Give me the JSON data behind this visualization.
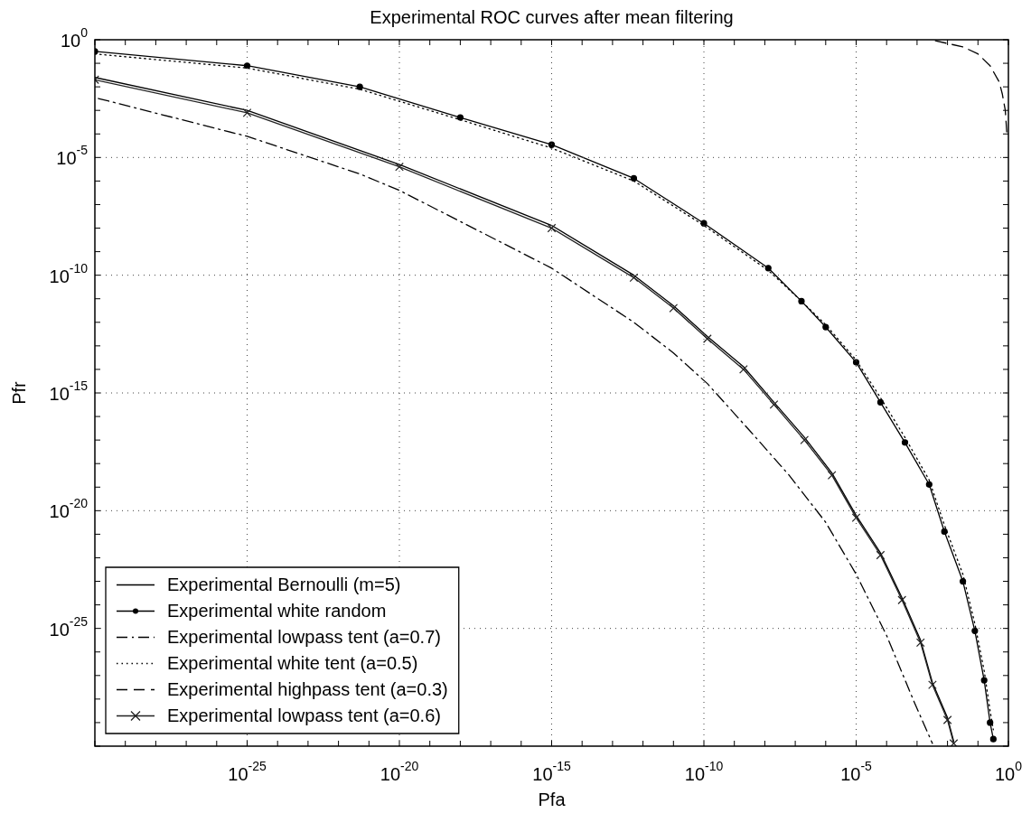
{
  "chart_data": {
    "type": "line",
    "title": "Experimental ROC curves after mean filtering",
    "xlabel": "Pfa",
    "ylabel": "Pfr",
    "log": "xy",
    "grid": true,
    "legend": "bottom left",
    "xlim": [
      1e-30,
      1
    ],
    "ylim": [
      1e-30,
      1
    ],
    "xticks": [
      {
        "value": 1e-30,
        "label": null
      },
      {
        "value": 1e-29,
        "label": null
      },
      {
        "value": 1e-28,
        "label": null
      },
      {
        "value": 1e-27,
        "label": null
      },
      {
        "value": 1e-26,
        "label": null
      },
      {
        "value": 1e-25,
        "label": "10$^{-25}$"
      },
      {
        "value": 1e-24,
        "label": null
      },
      {
        "value": 1e-23,
        "label": null
      },
      {
        "value": 1e-22,
        "label": null
      },
      {
        "value": 1e-21,
        "label": null
      },
      {
        "value": 1e-20,
        "label": "10$^{-20}$"
      },
      {
        "value": 1e-19,
        "label": null
      },
      {
        "value": 1e-18,
        "label": null
      },
      {
        "value": 1e-17,
        "label": null
      },
      {
        "value": 1e-16,
        "label": null
      },
      {
        "value": 1e-15,
        "label": "10$^{-15}$"
      },
      {
        "value": 1e-14,
        "label": null
      },
      {
        "value": 1e-13,
        "label": null
      },
      {
        "value": 1e-12,
        "label": null
      },
      {
        "value": 1e-11,
        "label": null
      },
      {
        "value": 1e-10,
        "label": "10$^{-10}$"
      },
      {
        "value": 1e-09,
        "label": null
      },
      {
        "value": 1e-08,
        "label": null
      },
      {
        "value": 1e-07,
        "label": null
      },
      {
        "value": 1e-06,
        "label": null
      },
      {
        "value": 1e-05,
        "label": "10$^{-5}$"
      },
      {
        "value": 0.0001,
        "label": null
      },
      {
        "value": 0.001,
        "label": null
      },
      {
        "value": 0.01,
        "label": null
      },
      {
        "value": 0.1,
        "label": null
      },
      {
        "value": 1,
        "label": "10$^{0}$"
      }
    ],
    "yticks": [
      {
        "value": 1e-30,
        "label": null
      },
      {
        "value": 1e-29,
        "label": null
      },
      {
        "value": 1e-28,
        "label": null
      },
      {
        "value": 1e-27,
        "label": null
      },
      {
        "value": 1e-26,
        "label": null
      },
      {
        "value": 1e-25,
        "label": "10$^{-25}$"
      },
      {
        "value": 1e-24,
        "label": null
      },
      {
        "value": 1e-23,
        "label": null
      },
      {
        "value": 1e-22,
        "label": null
      },
      {
        "value": 1e-21,
        "label": null
      },
      {
        "value": 1e-20,
        "label": "10$^{-20}$"
      },
      {
        "value": 1e-19,
        "label": null
      },
      {
        "value": 1e-18,
        "label": null
      },
      {
        "value": 1e-17,
        "label": null
      },
      {
        "value": 1e-16,
        "label": null
      },
      {
        "value": 1e-15,
        "label": "10$^{-15}$"
      },
      {
        "value": 1e-14,
        "label": null
      },
      {
        "value": 1e-13,
        "label": null
      },
      {
        "value": 1e-12,
        "label": null
      },
      {
        "value": 1e-11,
        "label": null
      },
      {
        "value": 1e-10,
        "label": "10$^{-10}$"
      },
      {
        "value": 1e-09,
        "label": null
      },
      {
        "value": 1e-08,
        "label": null
      },
      {
        "value": 1e-07,
        "label": null
      },
      {
        "value": 1e-06,
        "label": null
      },
      {
        "value": 1e-05,
        "label": "10$^{-5}$"
      },
      {
        "value": 0.0001,
        "label": null
      },
      {
        "value": 0.001,
        "label": null
      },
      {
        "value": 0.01,
        "label": null
      },
      {
        "value": 0.1,
        "label": null
      },
      {
        "value": 1,
        "label": "10$^{0}$"
      }
    ],
    "series": [
      {
        "name": "Experimental Bernoulli (m=5)",
        "color": "#000000",
        "line_style": "solid",
        "marker": "none",
        "x": [
          1e-30,
          1e-25,
          1e-20,
          1e-15,
          5e-13,
          1e-11,
          1.3e-10,
          2e-09,
          2e-08,
          2e-07,
          1.6e-06,
          1e-05,
          6.3e-05,
          0.00032,
          0.0013,
          0.0032,
          0.01,
          0.016
        ],
        "values": [
          0.025,
          0.001,
          5e-06,
          1.3e-08,
          1e-10,
          5e-12,
          2.5e-13,
          1.3e-14,
          4e-16,
          1.3e-17,
          4e-19,
          6.3e-21,
          1.6e-22,
          2e-24,
          3.2e-26,
          5e-28,
          1.6e-29,
          1.6e-30
        ]
      },
      {
        "name": "Experimental white random",
        "color": "#000000",
        "line_style": "solid",
        "marker": "circle",
        "x": [
          1e-30,
          1e-25,
          5e-22,
          1e-18,
          1e-15,
          5e-13,
          1e-10,
          1.3e-08,
          1.6e-07,
          1e-06,
          1e-05,
          6.3e-05,
          0.0004,
          0.0025,
          0.0079,
          0.032,
          0.079,
          0.16,
          0.25,
          0.32
        ],
        "values": [
          0.32,
          0.079,
          0.01,
          0.0005,
          3.5e-05,
          1.3e-06,
          1.6e-08,
          2e-10,
          7.9e-12,
          6.3e-13,
          2e-14,
          4e-16,
          7.9e-18,
          1.3e-19,
          1.3e-21,
          1e-23,
          7.9e-26,
          6.3e-28,
          1e-29,
          2e-30
        ]
      },
      {
        "name": "Experimental lowpass tent (a=0.7)",
        "color": "#000000",
        "line_style": "dashdot",
        "marker": "none",
        "x": [
          1.3e-30,
          1e-25,
          5e-22,
          1e-20,
          1e-15,
          5e-13,
          1e-11,
          1.3e-10,
          3.2e-09,
          6.3e-08,
          1e-06,
          1e-05,
          0.0001,
          0.00079,
          0.0032
        ],
        "values": [
          0.0032,
          7.9e-05,
          2e-06,
          4e-07,
          2e-10,
          1e-12,
          5e-14,
          2.5e-15,
          2.5e-17,
          3.2e-19,
          3.2e-21,
          2e-23,
          5e-26,
          7.9e-29,
          1.3e-30
        ]
      },
      {
        "name": "Experimental white tent (a=0.5)",
        "color": "#000000",
        "line_style": "dotted",
        "marker": "none",
        "x": [
          1e-30,
          1e-25,
          5e-22,
          1e-18,
          1e-15,
          5e-13,
          1e-10,
          1.3e-08,
          1.6e-07,
          1e-06,
          1e-05,
          6.3e-05,
          0.0004,
          0.0025,
          0.0079,
          0.032,
          0.079,
          0.16,
          0.25,
          0.32
        ],
        "values": [
          0.25,
          0.063,
          0.0079,
          0.0004,
          2.5e-05,
          1e-06,
          1.3e-08,
          1.6e-10,
          7.9e-12,
          7.9e-13,
          2.5e-14,
          6.3e-16,
          1.3e-17,
          2e-19,
          2.5e-21,
          2e-23,
          1.6e-25,
          1.6e-27,
          3.2e-29,
          5e-30
        ]
      },
      {
        "name": "Experimental highpass tent (a=0.3)",
        "color": "#000000",
        "line_style": "dashed",
        "marker": "none",
        "x": [
          0.004,
          0.032,
          0.1,
          0.25,
          0.5,
          0.63,
          0.79,
          0.89
        ],
        "values": [
          0.9,
          0.5,
          0.25,
          0.079,
          0.016,
          0.005,
          0.001,
          0.0001
        ]
      },
      {
        "name": "Experimental lowpass tent (a=0.6)",
        "color": "#222222",
        "line_style": "solid",
        "marker": "cross",
        "x": [
          1e-30,
          1e-25,
          1e-20,
          1e-15,
          5e-13,
          1e-11,
          1.3e-10,
          2e-09,
          2e-08,
          2e-07,
          1.6e-06,
          1e-05,
          6.3e-05,
          0.00032,
          0.0013,
          0.0032,
          0.01,
          0.016
        ],
        "values": [
          0.02,
          0.00079,
          4e-06,
          1e-08,
          7.9e-11,
          4e-12,
          2e-13,
          1e-14,
          3.2e-16,
          1e-17,
          3.2e-19,
          5e-21,
          1.3e-22,
          1.6e-24,
          2.5e-26,
          4e-28,
          1.3e-29,
          1.3e-30
        ]
      }
    ]
  }
}
